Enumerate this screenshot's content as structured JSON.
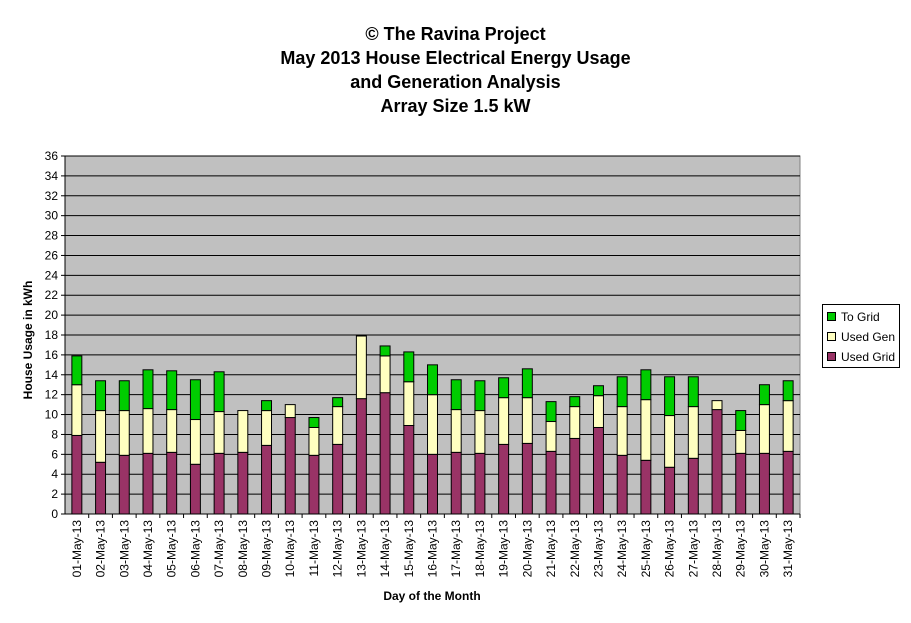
{
  "chart_data": {
    "type": "bar",
    "stacked": true,
    "title": [
      "© The Ravina Project",
      "May 2013 House Electrical Energy Usage",
      "and Generation Analysis",
      "Array Size 1.5 kW"
    ],
    "xlabel": "Day of the Month",
    "ylabel": "House Usage in kWh",
    "ylim": [
      0,
      36
    ],
    "yticks": [
      "0",
      "2",
      "4",
      "6",
      "8",
      "10",
      "12",
      "14",
      "16",
      "18",
      "20",
      "22",
      "24",
      "26",
      "28",
      "30",
      "32",
      "34",
      "36"
    ],
    "grid": true,
    "legend_position": "right",
    "categories": [
      "01-May-13",
      "02-May-13",
      "03-May-13",
      "04-May-13",
      "05-May-13",
      "06-May-13",
      "07-May-13",
      "08-May-13",
      "09-May-13",
      "10-May-13",
      "11-May-13",
      "12-May-13",
      "13-May-13",
      "14-May-13",
      "15-May-13",
      "16-May-13",
      "17-May-13",
      "18-May-13",
      "19-May-13",
      "20-May-13",
      "21-May-13",
      "22-May-13",
      "23-May-13",
      "24-May-13",
      "25-May-13",
      "26-May-13",
      "27-May-13",
      "28-May-13",
      "29-May-13",
      "30-May-13",
      "31-May-13"
    ],
    "series": [
      {
        "name": "Used Grid",
        "color": "#993366",
        "values": [
          7.9,
          5.2,
          5.9,
          6.1,
          6.2,
          5.0,
          6.1,
          6.2,
          6.9,
          9.7,
          5.9,
          7.0,
          11.6,
          12.2,
          8.9,
          6.0,
          6.2,
          6.1,
          7.0,
          7.1,
          6.3,
          7.6,
          8.7,
          5.9,
          5.4,
          4.7,
          5.6,
          10.5,
          6.1,
          6.1,
          6.3
        ]
      },
      {
        "name": "Used Gen",
        "color": "#FFFFC0",
        "values": [
          5.1,
          5.2,
          4.5,
          4.5,
          4.3,
          4.5,
          4.2,
          4.2,
          3.5,
          1.3,
          2.8,
          3.8,
          6.3,
          3.7,
          4.4,
          6.0,
          4.3,
          4.3,
          4.7,
          4.6,
          3.0,
          3.2,
          3.2,
          4.9,
          6.1,
          5.2,
          5.2,
          0.9,
          2.3,
          4.9,
          5.1
        ]
      },
      {
        "name": "To Grid",
        "color": "#00CC00",
        "values": [
          2.9,
          3.0,
          3.0,
          3.9,
          3.9,
          4.0,
          4.0,
          0.0,
          1.0,
          0.0,
          1.0,
          0.9,
          0.0,
          1.0,
          3.0,
          3.0,
          3.0,
          3.0,
          2.0,
          2.9,
          2.0,
          1.0,
          1.0,
          3.0,
          3.0,
          3.9,
          3.0,
          0.0,
          2.0,
          2.0,
          2.0
        ]
      }
    ]
  }
}
